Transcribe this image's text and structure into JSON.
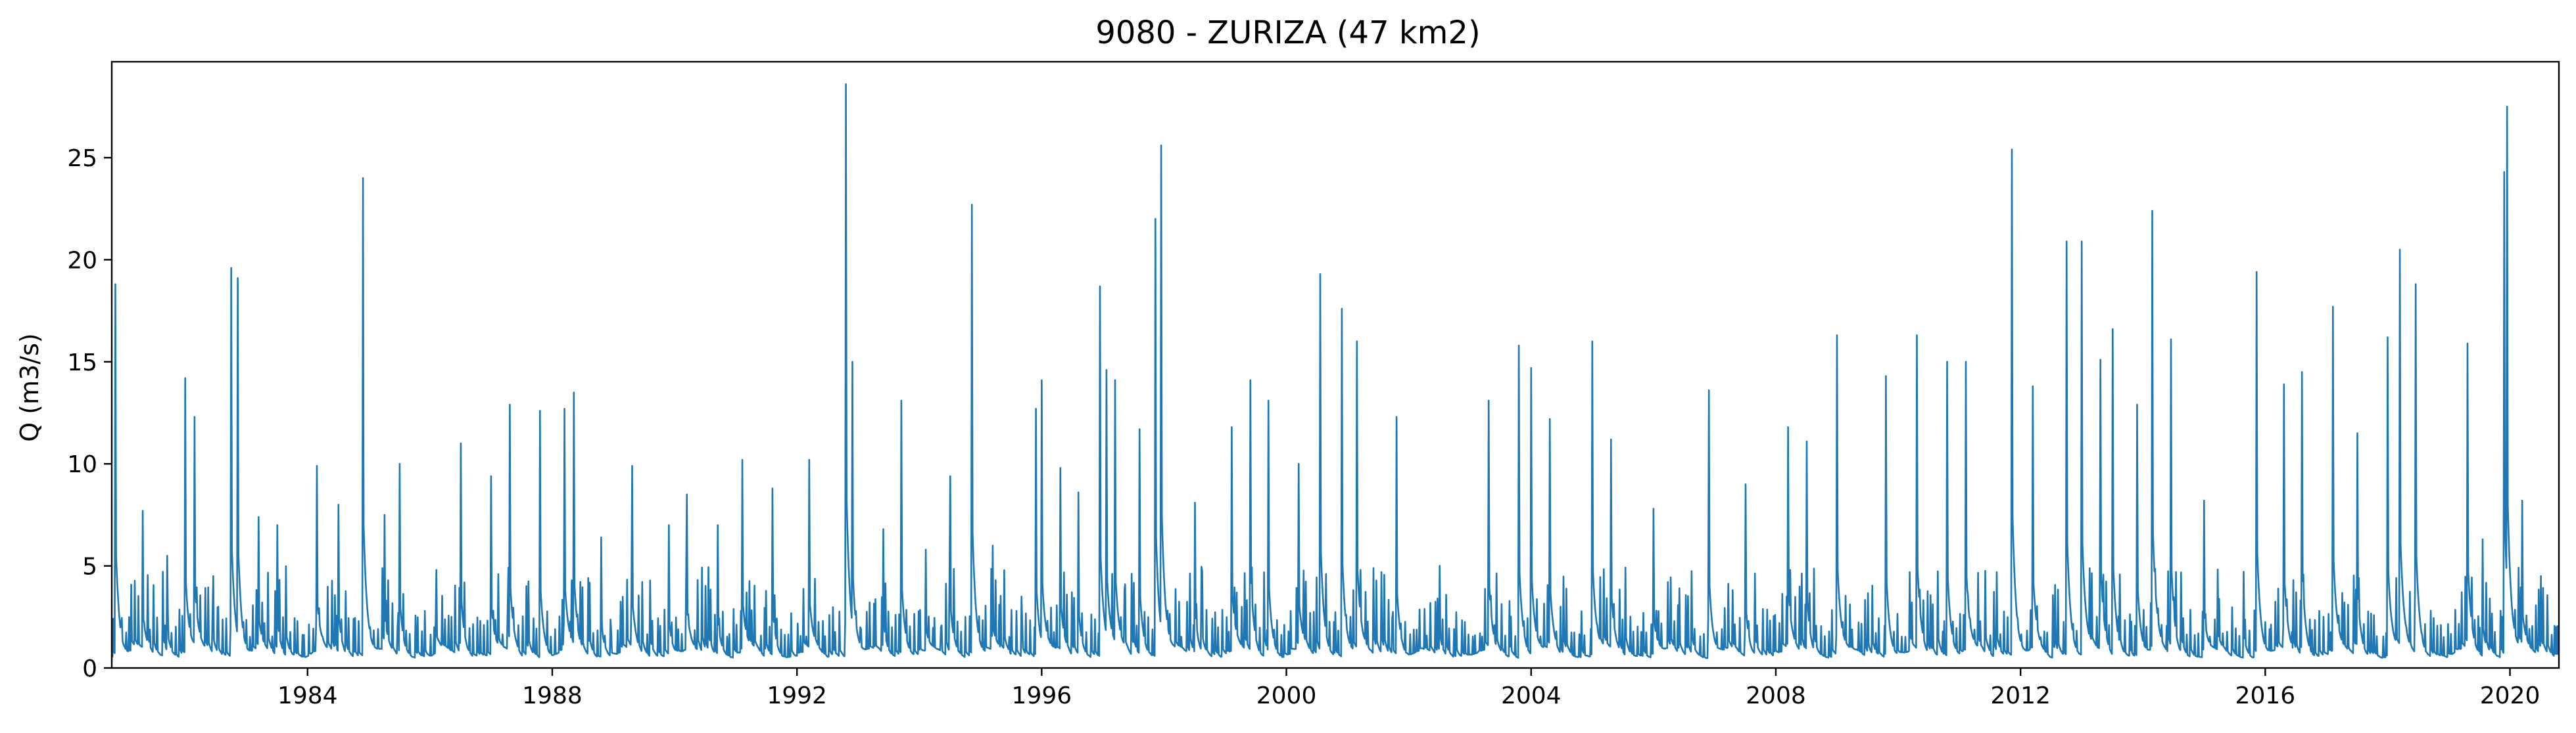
{
  "chart_data": {
    "type": "line",
    "title": "9080 - ZURIZA (47 km2)",
    "xlabel": "",
    "ylabel": "Q (m3/s)",
    "xlim": [
      1980.8,
      2020.8
    ],
    "ylim": [
      0,
      29.7
    ],
    "x_ticks": [
      1984,
      1988,
      1992,
      1996,
      2000,
      2004,
      2008,
      2012,
      2016,
      2020
    ],
    "x_tick_labels": [
      "1984",
      "1988",
      "1992",
      "1996",
      "2000",
      "2004",
      "2008",
      "2012",
      "2016",
      "2020"
    ],
    "y_ticks": [
      0,
      5,
      10,
      15,
      20,
      25
    ],
    "y_tick_labels": [
      "0",
      "5",
      "10",
      "15",
      "20",
      "25"
    ],
    "grid": false,
    "legend": "none",
    "series": [
      {
        "color": "#1f77b4",
        "peaks": [
          [
            1980.85,
            18.8
          ],
          [
            1980.95,
            2.2
          ],
          [
            1981.3,
            7.7
          ],
          [
            1981.7,
            5.5
          ],
          [
            1982.0,
            14.2
          ],
          [
            1982.15,
            12.3
          ],
          [
            1982.45,
            4.5
          ],
          [
            1982.75,
            19.6
          ],
          [
            1982.85,
            19.1
          ],
          [
            1983.2,
            7.4
          ],
          [
            1983.5,
            7.0
          ],
          [
            1984.15,
            9.9
          ],
          [
            1984.5,
            8.0
          ],
          [
            1984.9,
            24.0
          ],
          [
            1985.25,
            7.5
          ],
          [
            1985.5,
            10.0
          ],
          [
            1986.1,
            4.8
          ],
          [
            1986.5,
            11.0
          ],
          [
            1987.0,
            9.4
          ],
          [
            1987.3,
            12.9
          ],
          [
            1987.8,
            12.6
          ],
          [
            1988.2,
            12.7
          ],
          [
            1988.35,
            13.5
          ],
          [
            1988.8,
            6.4
          ],
          [
            1989.3,
            9.9
          ],
          [
            1989.9,
            7.0
          ],
          [
            1990.2,
            8.5
          ],
          [
            1990.7,
            7.0
          ],
          [
            1991.1,
            10.2
          ],
          [
            1991.6,
            8.8
          ],
          [
            1992.2,
            10.2
          ],
          [
            1992.8,
            28.6
          ],
          [
            1992.9,
            15.0
          ],
          [
            1993.4,
            6.8
          ],
          [
            1993.7,
            13.1
          ],
          [
            1994.1,
            5.8
          ],
          [
            1994.5,
            9.4
          ],
          [
            1994.85,
            22.7
          ],
          [
            1995.2,
            6.0
          ],
          [
            1995.9,
            12.7
          ],
          [
            1996.0,
            14.1
          ],
          [
            1996.3,
            9.8
          ],
          [
            1996.6,
            8.6
          ],
          [
            1996.95,
            18.7
          ],
          [
            1997.05,
            14.6
          ],
          [
            1997.2,
            14.1
          ],
          [
            1997.6,
            11.7
          ],
          [
            1997.85,
            22.0
          ],
          [
            1997.95,
            25.6
          ],
          [
            1998.5,
            8.1
          ],
          [
            1999.1,
            11.8
          ],
          [
            1999.4,
            14.1
          ],
          [
            1999.7,
            13.1
          ],
          [
            2000.2,
            10.0
          ],
          [
            2000.55,
            19.3
          ],
          [
            2000.9,
            17.6
          ],
          [
            2001.15,
            16.0
          ],
          [
            2001.8,
            12.3
          ],
          [
            2002.5,
            5.0
          ],
          [
            2003.3,
            13.1
          ],
          [
            2003.8,
            15.8
          ],
          [
            2004.0,
            14.7
          ],
          [
            2004.3,
            12.2
          ],
          [
            2005.0,
            16.0
          ],
          [
            2005.3,
            11.2
          ],
          [
            2006.0,
            7.8
          ],
          [
            2006.9,
            13.6
          ],
          [
            2007.5,
            9.0
          ],
          [
            2008.2,
            11.8
          ],
          [
            2008.5,
            11.1
          ],
          [
            2009.0,
            16.3
          ],
          [
            2009.8,
            14.3
          ],
          [
            2010.3,
            16.3
          ],
          [
            2010.8,
            15.0
          ],
          [
            2011.1,
            15.0
          ],
          [
            2011.85,
            25.4
          ],
          [
            2012.2,
            13.8
          ],
          [
            2012.75,
            20.9
          ],
          [
            2013.0,
            20.9
          ],
          [
            2013.3,
            15.1
          ],
          [
            2013.5,
            16.6
          ],
          [
            2013.9,
            12.9
          ],
          [
            2014.15,
            22.4
          ],
          [
            2014.45,
            16.1
          ],
          [
            2015.0,
            8.2
          ],
          [
            2015.85,
            19.4
          ],
          [
            2016.3,
            13.9
          ],
          [
            2016.6,
            14.5
          ],
          [
            2017.1,
            17.7
          ],
          [
            2017.5,
            11.5
          ],
          [
            2018.0,
            16.2
          ],
          [
            2018.2,
            20.5
          ],
          [
            2018.45,
            18.8
          ],
          [
            2019.3,
            15.9
          ],
          [
            2019.55,
            6.3
          ],
          [
            2019.9,
            24.3
          ],
          [
            2019.95,
            27.5
          ],
          [
            2020.2,
            8.2
          ],
          [
            2020.5,
            4.5
          ],
          [
            2020.75,
            2.0
          ]
        ]
      }
    ]
  }
}
